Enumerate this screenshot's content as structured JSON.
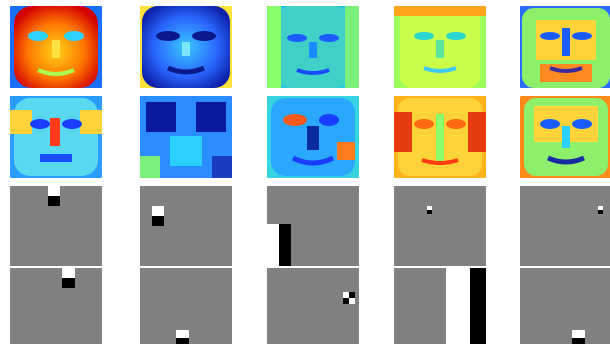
{
  "colors": {
    "feature_background": "#808080",
    "feature_positive": "#ffffff",
    "feature_negative": "#000000"
  },
  "rows": [
    {
      "kind": "heatmap-face",
      "colormap": "jet",
      "tiles": [
        {
          "name": "face-heatmap-1"
        },
        {
          "name": "face-heatmap-2"
        },
        {
          "name": "face-heatmap-3"
        },
        {
          "name": "face-heatmap-4"
        },
        {
          "name": "face-heatmap-5"
        }
      ]
    },
    {
      "kind": "heatmap-face",
      "colormap": "jet",
      "tiles": [
        {
          "name": "face-heatmap-6"
        },
        {
          "name": "face-heatmap-7"
        },
        {
          "name": "face-heatmap-8"
        },
        {
          "name": "face-heatmap-9"
        },
        {
          "name": "face-heatmap-10"
        }
      ]
    },
    {
      "kind": "haar-feature",
      "tiles": [
        {
          "name": "haar-feature-1"
        },
        {
          "name": "haar-feature-2"
        },
        {
          "name": "haar-feature-3"
        },
        {
          "name": "haar-feature-4"
        },
        {
          "name": "haar-feature-5"
        }
      ]
    },
    {
      "kind": "haar-feature",
      "tiles": [
        {
          "name": "haar-feature-6"
        },
        {
          "name": "haar-feature-7"
        },
        {
          "name": "haar-feature-8"
        },
        {
          "name": "haar-feature-9"
        },
        {
          "name": "haar-feature-10"
        }
      ]
    }
  ]
}
